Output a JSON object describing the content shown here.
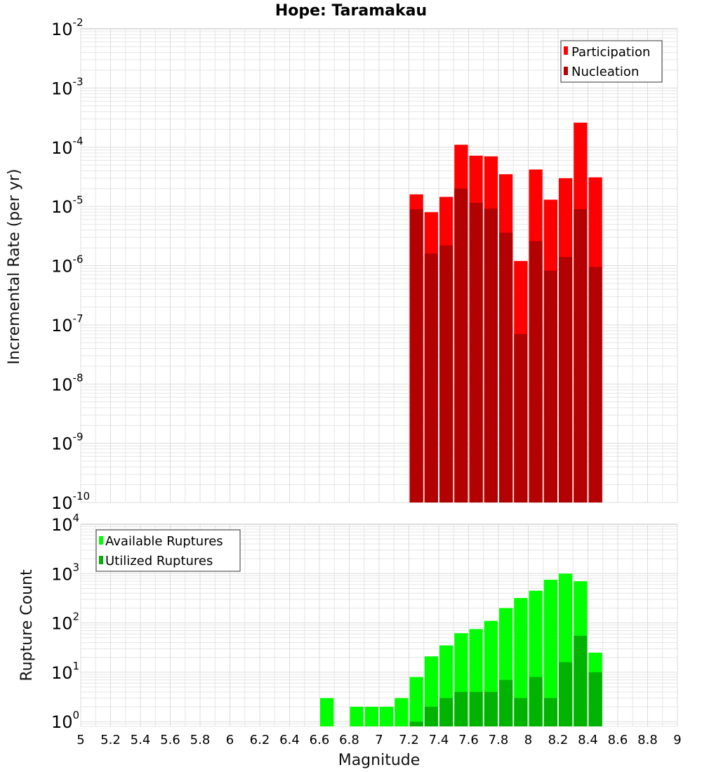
{
  "title": "Hope: Taramakau",
  "x_axis": {
    "label": "Magnitude",
    "range": [
      5,
      9
    ],
    "ticks": [
      "5",
      "5.2",
      "5.4",
      "5.6",
      "5.8",
      "6",
      "6.2",
      "6.4",
      "6.6",
      "6.8",
      "7",
      "7.2",
      "7.4",
      "7.6",
      "7.8",
      "8",
      "8.2",
      "8.4",
      "8.6",
      "8.8",
      "9"
    ]
  },
  "colors": {
    "participation": "#ff0000",
    "nucleation": "#b30000",
    "available": "#00ff00",
    "utilized": "#00b300",
    "grid": "#e6e6e6",
    "frame": "#bdbdbd"
  },
  "chart_data": [
    {
      "type": "bar",
      "title": "Hope: Taramakau",
      "xlabel": "Magnitude",
      "ylabel": "Incremental Rate (per yr)",
      "yscale": "log",
      "ylim": [
        1e-10,
        0.01
      ],
      "grid": true,
      "legend_position": "top-right",
      "y_ticks": [
        {
          "base": "10",
          "exp": "-10"
        },
        {
          "base": "10",
          "exp": "-9"
        },
        {
          "base": "10",
          "exp": "-8"
        },
        {
          "base": "10",
          "exp": "-7"
        },
        {
          "base": "10",
          "exp": "-6"
        },
        {
          "base": "10",
          "exp": "-5"
        },
        {
          "base": "10",
          "exp": "-4"
        },
        {
          "base": "10",
          "exp": "-3"
        },
        {
          "base": "10",
          "exp": "-2"
        }
      ],
      "x": [
        7.25,
        7.35,
        7.45,
        7.55,
        7.65,
        7.75,
        7.85,
        7.95,
        8.05,
        8.15,
        8.25,
        8.35,
        8.45
      ],
      "series": [
        {
          "name": "Participation",
          "values": [
            1.6e-05,
            8e-06,
            1.45e-05,
            0.00011,
            7.2e-05,
            7e-05,
            3.5e-05,
            1.2e-06,
            4.2e-05,
            1.3e-05,
            3e-05,
            0.00026,
            3.1e-05
          ]
        },
        {
          "name": "Nucleation",
          "values": [
            9e-06,
            1.6e-06,
            2.2e-06,
            2e-05,
            1.15e-05,
            9.2e-06,
            3.6e-06,
            7e-08,
            2.6e-06,
            8.2e-07,
            1.4e-06,
            9e-06,
            9.5e-07
          ]
        }
      ]
    },
    {
      "type": "bar",
      "xlabel": "Magnitude",
      "ylabel": "Rupture Count",
      "yscale": "log",
      "ylim": [
        0.8,
        10000
      ],
      "grid": true,
      "legend_position": "top-left",
      "y_ticks": [
        {
          "base": "10",
          "exp": "0"
        },
        {
          "base": "10",
          "exp": "1"
        },
        {
          "base": "10",
          "exp": "2"
        },
        {
          "base": "10",
          "exp": "3"
        },
        {
          "base": "10",
          "exp": "4"
        }
      ],
      "x": [
        6.65,
        6.85,
        6.95,
        7.05,
        7.15,
        7.25,
        7.35,
        7.45,
        7.55,
        7.65,
        7.75,
        7.85,
        7.95,
        8.05,
        8.15,
        8.25,
        8.35,
        8.45
      ],
      "series": [
        {
          "name": "Available Ruptures",
          "values": [
            3,
            2,
            2,
            2,
            3,
            8,
            21,
            35,
            62,
            75,
            110,
            200,
            320,
            450,
            750,
            1000,
            700,
            25
          ]
        },
        {
          "name": "Utilized Ruptures",
          "values": [
            null,
            null,
            null,
            null,
            null,
            1,
            2,
            3,
            4,
            4,
            4,
            7,
            3,
            8,
            3,
            16,
            55,
            10
          ]
        }
      ]
    }
  ]
}
